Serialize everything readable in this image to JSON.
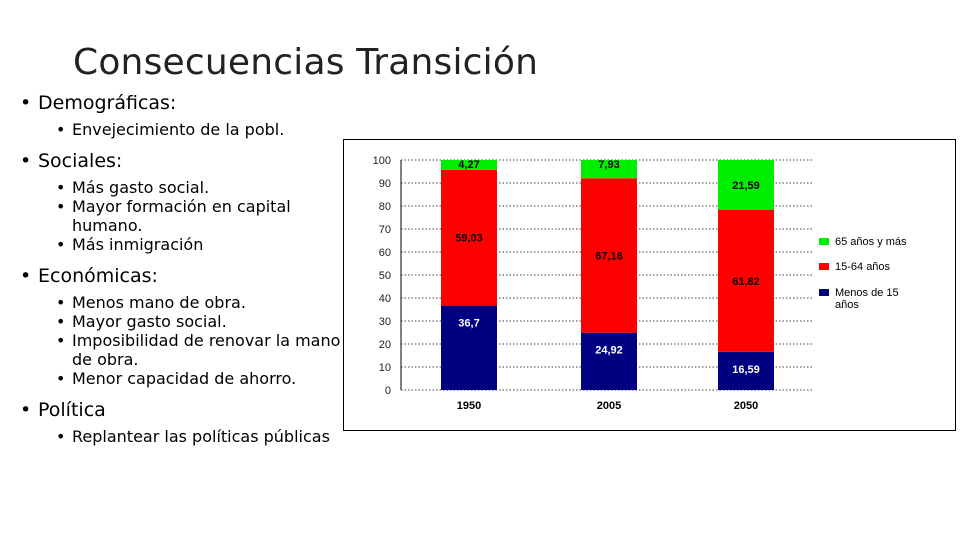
{
  "title": "Consecuencias Transición",
  "bullets": [
    {
      "label": "Demográficas:",
      "items": [
        "Envejecimiento de la pobl."
      ]
    },
    {
      "label": "Sociales:",
      "items": [
        "Más gasto social.",
        "Mayor formación en capital humano.",
        "Más inmigración"
      ]
    },
    {
      "label": "Económicas:",
      "items": [
        "Menos mano de obra.",
        "Mayor gasto social.",
        "Imposibilidad de renovar la mano de obra.",
        "Menor capacidad de ahorro."
      ]
    },
    {
      "label": "Política",
      "items": [
        "Replantear las políticas públicas"
      ]
    }
  ],
  "chart_data": {
    "type": "bar",
    "stacked": true,
    "categories": [
      "1950",
      "2005",
      "2050"
    ],
    "series": [
      {
        "name": "Menos de 15 años",
        "values": [
          36.7,
          24.92,
          16.59
        ],
        "labels": [
          "36,7",
          "24,92",
          "16,59"
        ],
        "color": "#000080"
      },
      {
        "name": "15-64 años",
        "values": [
          59.03,
          67.16,
          61.82
        ],
        "labels": [
          "59,03",
          "67,16",
          "61,82"
        ],
        "color": "#ff0000"
      },
      {
        "name": "65 años y más",
        "values": [
          4.27,
          7.93,
          21.59
        ],
        "labels": [
          "4,27",
          "7,93",
          "21,59"
        ],
        "color": "#00ee00"
      }
    ],
    "yticks": [
      "0",
      "10",
      "20",
      "30",
      "40",
      "50",
      "60",
      "70",
      "80",
      "90",
      "100"
    ],
    "ylim": [
      0,
      100
    ],
    "grid": true,
    "legend": "right",
    "title": "",
    "xlabel": "",
    "ylabel": ""
  }
}
